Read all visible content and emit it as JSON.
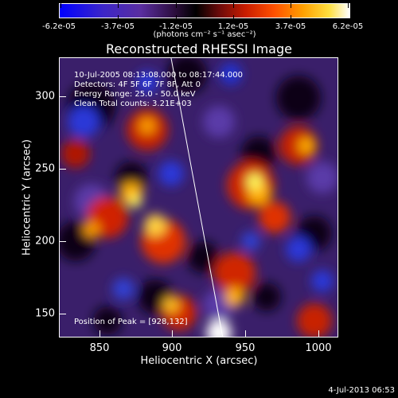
{
  "colorbar": {
    "tick_labels": [
      "-6.2e-05",
      "-3.7e-05",
      "-1.2e-05",
      "1.2e-05",
      "3.7e-05",
      "6.2e-05"
    ],
    "units": "(photons cm⁻² s⁻¹ asec⁻²)",
    "min": -6.2e-05,
    "max": 6.2e-05
  },
  "title": "Reconstructed RHESSI Image",
  "info": {
    "time_range": "10-Jul-2005 08:13:08.000 to 08:17:44.000",
    "detectors": "Detectors: 4F 5F 6F 7F 8F, Att 0",
    "energy_range": "Energy Range: 25.0 - 50.0 keV",
    "algorithm": "Clean    Total counts: 3.21E+03",
    "peak": "Position of Peak = [928,132]"
  },
  "axes": {
    "xlabel": "Heliocentric X (arcsec)",
    "ylabel": "Heliocentric Y (arcsec)",
    "xticks": [
      "850",
      "900",
      "950",
      "1000"
    ],
    "yticks": [
      "150",
      "200",
      "250",
      "300"
    ],
    "xlim": [
      820,
      1012
    ],
    "ylim": [
      132,
      325
    ]
  },
  "footer_timestamp": "4-Jul-2013 06:53",
  "colors": {
    "background": "#000000",
    "text": "#ffffff",
    "colormap": [
      "#0000ff",
      "#3a24c8",
      "#5a2ea8",
      "#000000",
      "#a01a1a",
      "#ff3000",
      "#ffa000",
      "#ffff40",
      "#ffffff"
    ]
  }
}
